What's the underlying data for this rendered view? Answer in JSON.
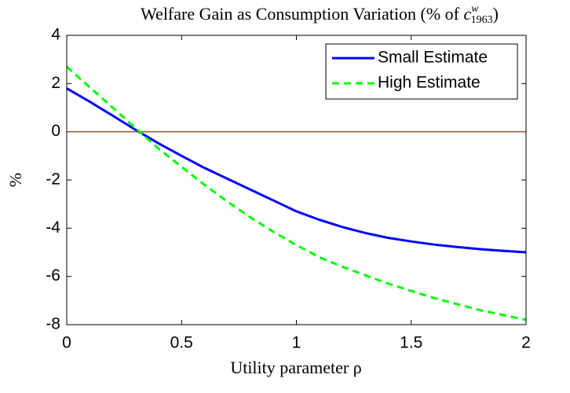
{
  "chart_data": {
    "type": "line",
    "title": [
      "Welfare Gain as Consumption Variation (% of ",
      "c",
      "w",
      "1963",
      ")"
    ],
    "xlabel": "Utility parameter ρ",
    "ylabel": "%",
    "x": [
      0,
      0.1,
      0.2,
      0.3,
      0.4,
      0.5,
      0.6,
      0.7,
      0.8,
      0.9,
      1,
      1.1,
      1.2,
      1.3,
      1.4,
      1.5,
      1.6,
      1.7,
      1.8,
      1.9,
      2
    ],
    "series": [
      {
        "name": "Small Estimate",
        "color": "#0000ff",
        "dash": false,
        "values": [
          1.8,
          1.25,
          0.67,
          0.08,
          -0.48,
          -1.0,
          -1.5,
          -1.95,
          -2.4,
          -2.85,
          -3.3,
          -3.65,
          -3.95,
          -4.2,
          -4.4,
          -4.55,
          -4.68,
          -4.78,
          -4.87,
          -4.94,
          -5.0
        ]
      },
      {
        "name": "High Estimate",
        "color": "#00ff00",
        "dash": true,
        "values": [
          2.7,
          1.85,
          1.0,
          0.15,
          -0.7,
          -1.45,
          -2.2,
          -2.9,
          -3.55,
          -4.15,
          -4.7,
          -5.2,
          -5.6,
          -5.95,
          -6.3,
          -6.6,
          -6.9,
          -7.15,
          -7.4,
          -7.6,
          -7.8
        ]
      }
    ],
    "hline": {
      "value": 0,
      "color": "#a0522d"
    },
    "xlim": [
      0,
      2
    ],
    "xticks": [
      0,
      0.5,
      1,
      1.5,
      2
    ],
    "ylim": [
      -8,
      4
    ],
    "yticks": [
      -8,
      -6,
      -4,
      -2,
      0,
      2,
      4
    ],
    "legend": "upper right"
  }
}
